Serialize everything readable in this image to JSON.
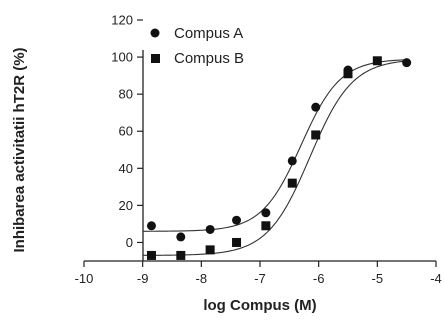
{
  "chart_data": {
    "type": "scatter",
    "xlabel": "log Compus (M)",
    "ylabel": "Inhibarea activitatii hT2R  (%)",
    "xlim": [
      -10,
      -4
    ],
    "ylim": [
      -10,
      120
    ],
    "xticks": [
      -10,
      -9,
      -8,
      -7,
      -6,
      -5,
      -4
    ],
    "yticks": [
      0,
      20,
      40,
      60,
      80,
      100,
      120
    ],
    "grid": false,
    "legend_position": "top-left",
    "series": [
      {
        "name": "Compus A",
        "marker": "circle",
        "color": "#111111",
        "x": [
          -8.85,
          -8.35,
          -7.85,
          -7.4,
          -6.9,
          -6.45,
          -6.05,
          -5.5,
          -4.5
        ],
        "y": [
          9,
          3,
          7,
          12,
          16,
          44,
          73,
          93,
          97
        ],
        "fit": {
          "bottom": 6,
          "top": 99,
          "logEC50": -6.3,
          "hill": 1.3
        }
      },
      {
        "name": "Compus B",
        "marker": "square",
        "color": "#111111",
        "x": [
          -8.85,
          -8.35,
          -7.85,
          -7.4,
          -6.9,
          -6.45,
          -6.05,
          -5.5,
          -5.0
        ],
        "y": [
          -7,
          -7,
          -4,
          0,
          9,
          32,
          58,
          91,
          98
        ],
        "fit": {
          "bottom": -7,
          "top": 99,
          "logEC50": -6.15,
          "hill": 1.2
        }
      }
    ]
  }
}
